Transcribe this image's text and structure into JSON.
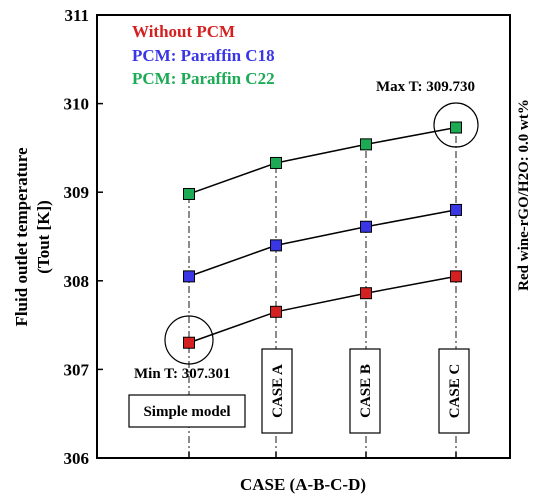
{
  "chart_data": {
    "type": "line",
    "title": "",
    "xlabel": "CASE (A-B-C-D)",
    "ylabel": "Fluid outlet temperature (Tout [K])",
    "ylabel_lines": [
      "Fluid outlet temperature",
      "(Tout [K])"
    ],
    "ylim": [
      306,
      311
    ],
    "yticks": [
      306,
      307,
      308,
      309,
      310,
      311
    ],
    "grid": false,
    "legend_position": "top-left",
    "categories": [
      "Simple model",
      "CASE A",
      "CASE B",
      "CASE C"
    ],
    "series": [
      {
        "name": "Without PCM",
        "color": "#d42020",
        "values": [
          307.301,
          307.65,
          307.86,
          308.05
        ]
      },
      {
        "name": "PCM: Paraffin C18",
        "color": "#3a36e6",
        "values": [
          308.05,
          308.4,
          308.61,
          308.8
        ]
      },
      {
        "name": "PCM: Paraffin C22",
        "color": "#1daa55",
        "values": [
          308.98,
          309.33,
          309.54,
          309.73
        ]
      }
    ],
    "annotations": {
      "min_label": "Min T: 307.301",
      "max_label": "Max T: 309.730",
      "side_label": "Red wine-rGO/H2O: 0.0 wt%"
    }
  }
}
